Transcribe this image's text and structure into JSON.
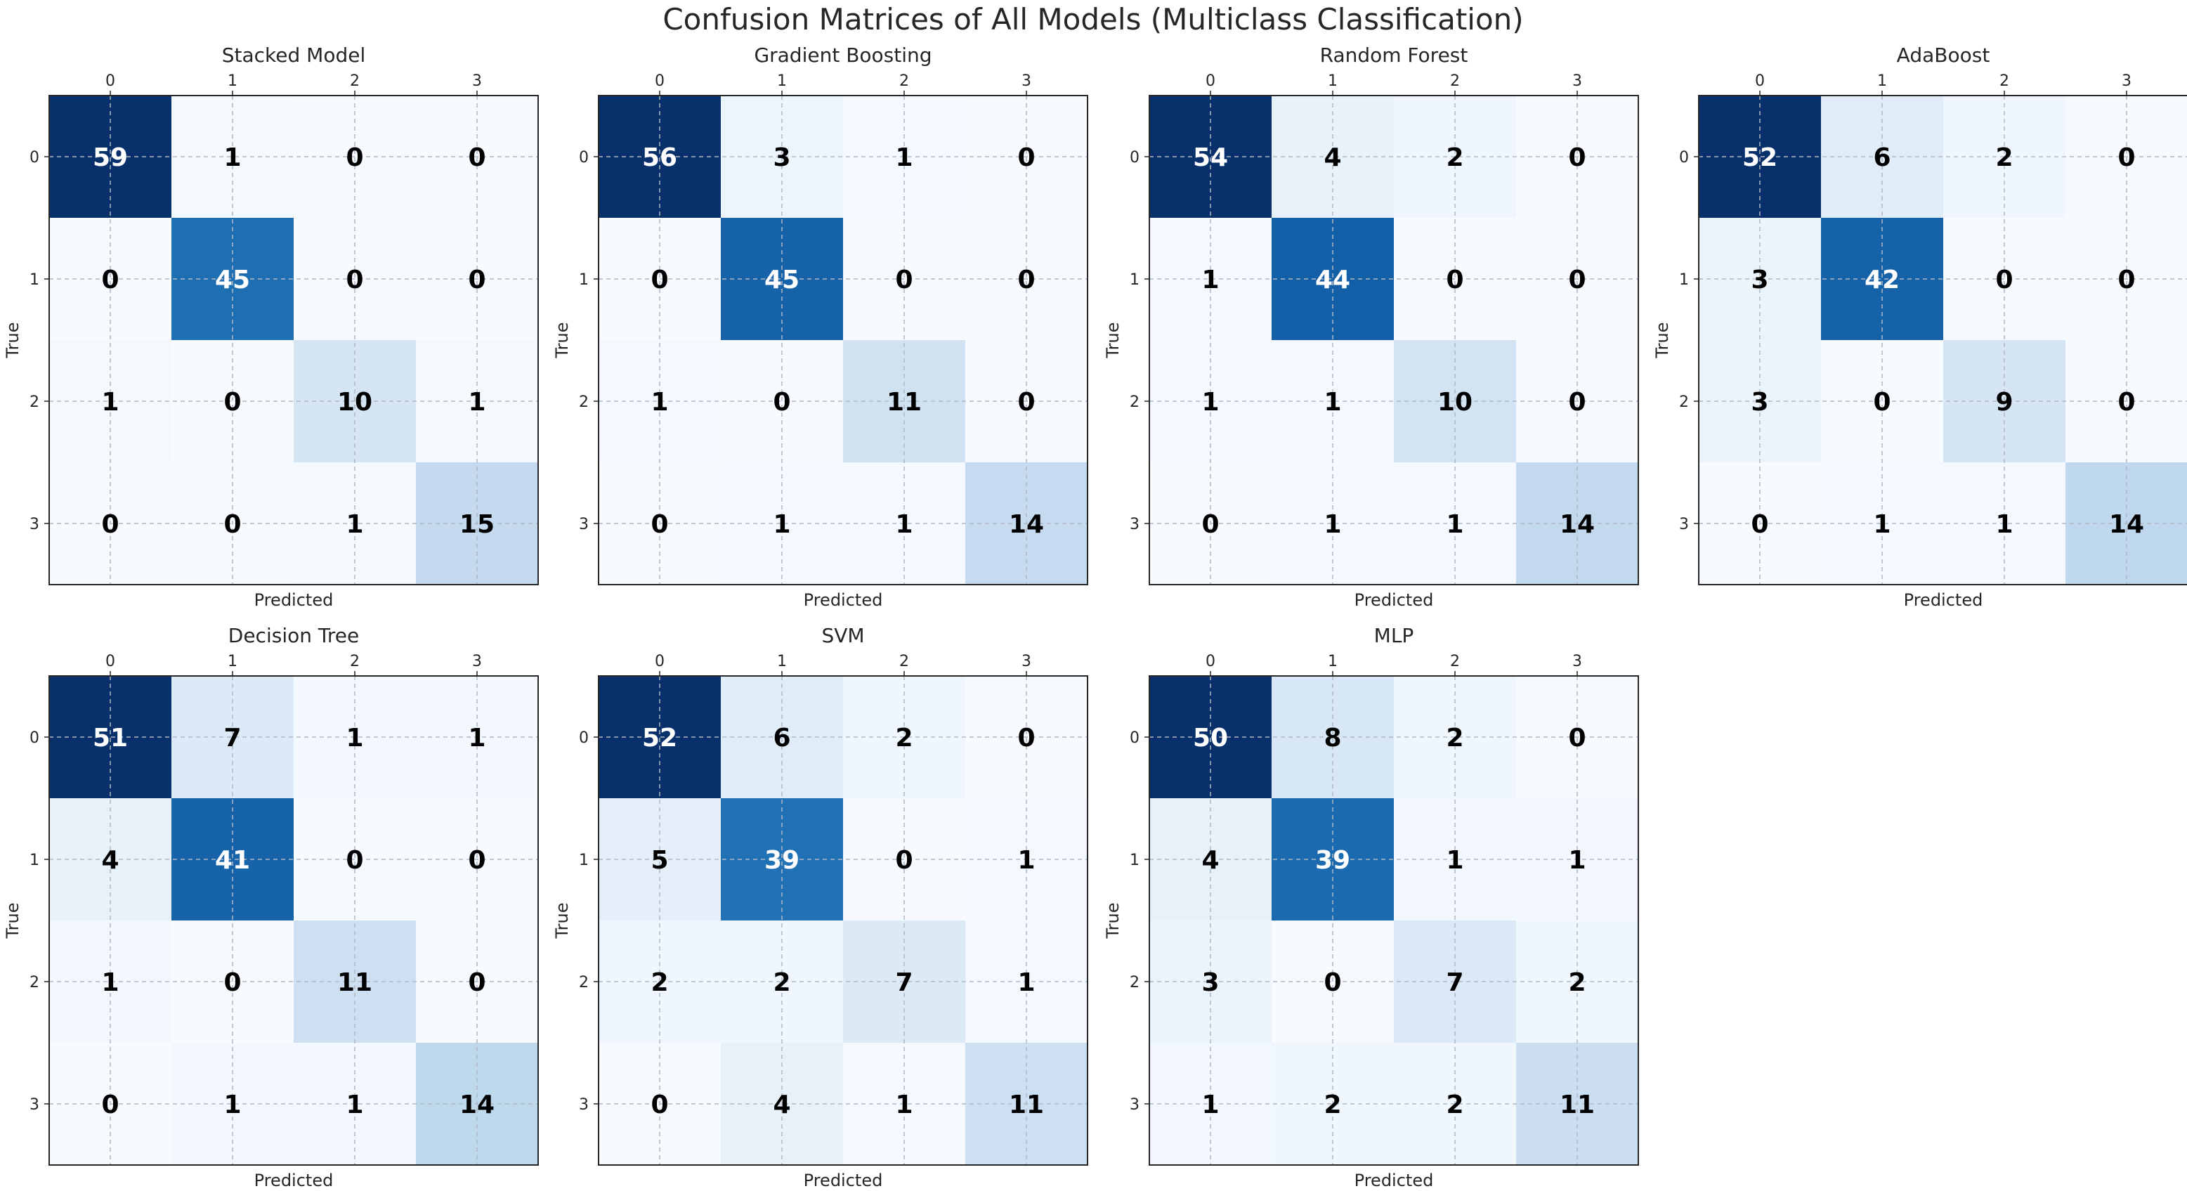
{
  "chart_data": {
    "type": "heatmap",
    "suptitle": "Confusion Matrices of All Models (Multiclass Classification)",
    "classes": [
      "0",
      "1",
      "2",
      "3"
    ],
    "xlabel": "Predicted",
    "ylabel": "True",
    "colormap": "Blues",
    "color_low": "#f7fbff",
    "color_high": "#08306b",
    "text_dark": "#000000",
    "text_light": "#ffffff",
    "panels": [
      {
        "title": "Stacked Model",
        "matrix": [
          [
            59,
            1,
            0,
            0
          ],
          [
            0,
            45,
            0,
            0
          ],
          [
            1,
            0,
            10,
            1
          ],
          [
            0,
            0,
            1,
            15
          ]
        ]
      },
      {
        "title": "Gradient Boosting",
        "matrix": [
          [
            56,
            3,
            1,
            0
          ],
          [
            0,
            45,
            0,
            0
          ],
          [
            1,
            0,
            11,
            0
          ],
          [
            0,
            1,
            1,
            14
          ]
        ]
      },
      {
        "title": "Random Forest",
        "matrix": [
          [
            54,
            4,
            2,
            0
          ],
          [
            1,
            44,
            0,
            0
          ],
          [
            1,
            1,
            10,
            0
          ],
          [
            0,
            1,
            1,
            14
          ]
        ]
      },
      {
        "title": "AdaBoost",
        "matrix": [
          [
            52,
            6,
            2,
            0
          ],
          [
            3,
            42,
            0,
            0
          ],
          [
            3,
            0,
            9,
            0
          ],
          [
            0,
            1,
            1,
            14
          ]
        ]
      },
      {
        "title": "Decision Tree",
        "matrix": [
          [
            51,
            7,
            1,
            1
          ],
          [
            4,
            41,
            0,
            0
          ],
          [
            1,
            0,
            11,
            0
          ],
          [
            0,
            1,
            1,
            14
          ]
        ]
      },
      {
        "title": "SVM",
        "matrix": [
          [
            52,
            6,
            2,
            0
          ],
          [
            5,
            39,
            0,
            1
          ],
          [
            2,
            2,
            7,
            1
          ],
          [
            0,
            4,
            1,
            11
          ]
        ]
      },
      {
        "title": "MLP",
        "matrix": [
          [
            50,
            8,
            2,
            0
          ],
          [
            4,
            39,
            1,
            1
          ],
          [
            3,
            0,
            7,
            2
          ],
          [
            1,
            2,
            2,
            11
          ]
        ]
      }
    ]
  }
}
